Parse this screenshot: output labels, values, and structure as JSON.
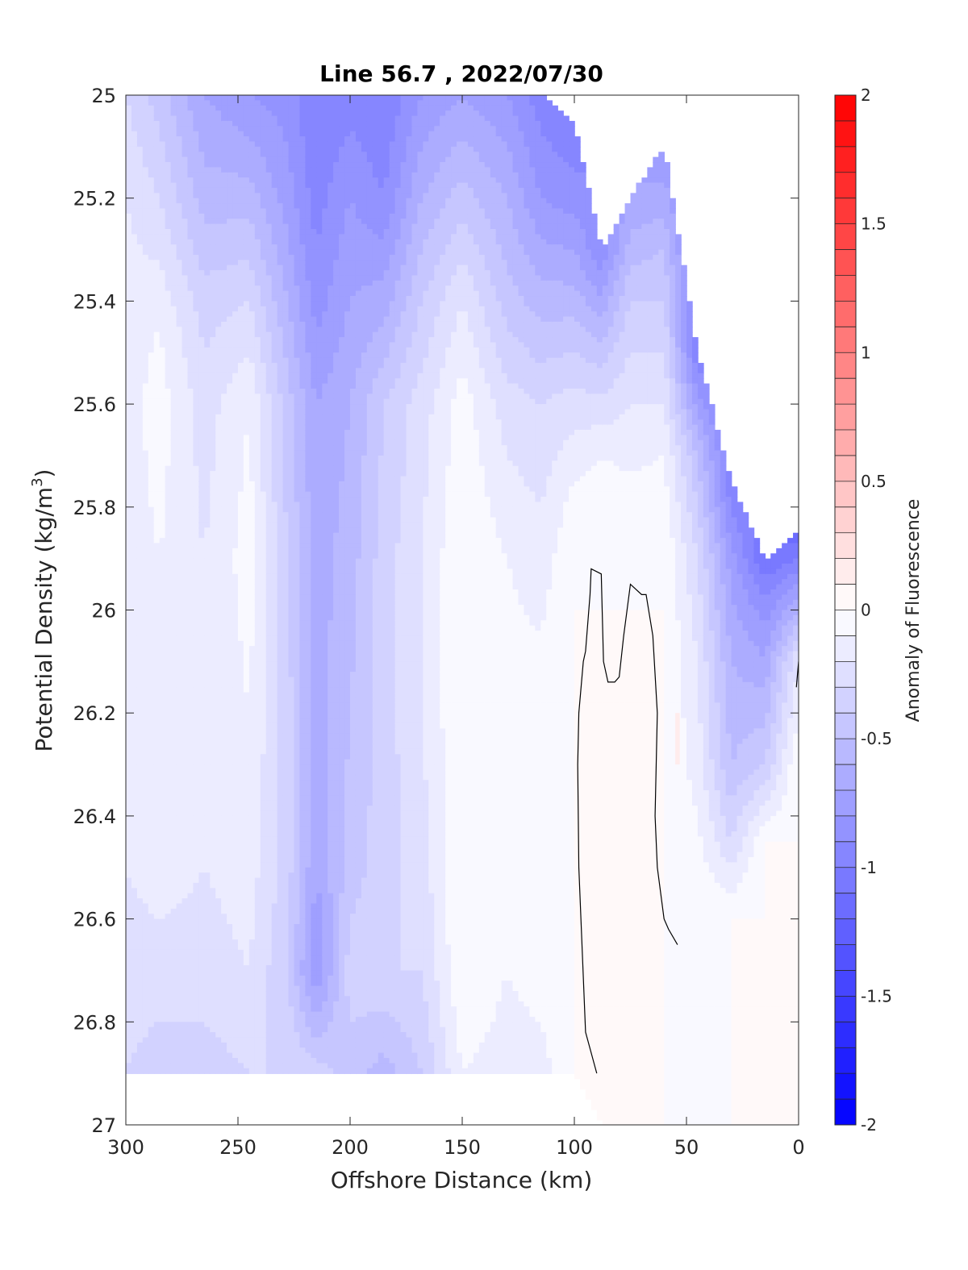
{
  "chart_data": {
    "type": "contour",
    "title": "Line 56.7 , 2022/07/30",
    "xlabel": "Offshore Distance (km)",
    "ylabel": "Potential Density (kg/m",
    "ylabel_superscript": "3",
    "ylabel_suffix": ")",
    "xlim": [
      300,
      0
    ],
    "ylim": [
      25,
      27
    ],
    "x_reversed": true,
    "y_reversed": true,
    "xticks": [
      300,
      250,
      200,
      150,
      100,
      50,
      0
    ],
    "yticks": [
      25,
      25.2,
      25.4,
      25.6,
      25.8,
      26,
      26.2,
      26.4,
      26.6,
      26.8,
      27
    ],
    "xtick_labels": [
      "300",
      "250",
      "200",
      "150",
      "100",
      "50",
      "0"
    ],
    "ytick_labels": [
      "25",
      "25.2",
      "25.4",
      "25.6",
      "25.8",
      "26",
      "26.2",
      "26.4",
      "26.6",
      "26.8",
      "27"
    ],
    "colorbar": {
      "label": "Anomaly of Fluorescence",
      "range": [
        -2,
        2
      ],
      "levels": 40,
      "ticks": [
        -2,
        -1.5,
        -1,
        -0.5,
        0,
        0.5,
        1,
        1.5,
        2
      ],
      "tick_labels": [
        "-2",
        "-1.5",
        "-1",
        "-0.5",
        "0",
        "0.5",
        "1",
        "1.5",
        "2"
      ],
      "low_color": "#0000ff",
      "mid_color": "#ffffff",
      "high_color": "#ff0000"
    },
    "columns": [
      {
        "x": 300,
        "top": 25.0,
        "bottom": 26.9,
        "profile": [
          [
            25.0,
            -0.3
          ],
          [
            25.2,
            -0.2
          ],
          [
            25.45,
            -0.15
          ],
          [
            25.9,
            -0.15
          ],
          [
            26.2,
            -0.15
          ],
          [
            26.5,
            -0.2
          ],
          [
            26.7,
            -0.25
          ],
          [
            26.9,
            -0.3
          ]
        ]
      },
      {
        "x": 285,
        "top": 25.0,
        "bottom": 26.9,
        "profile": [
          [
            25.0,
            -0.45
          ],
          [
            25.2,
            -0.3
          ],
          [
            25.45,
            -0.1
          ],
          [
            25.6,
            -0.05
          ],
          [
            25.9,
            -0.1
          ],
          [
            26.2,
            -0.15
          ],
          [
            26.5,
            -0.15
          ],
          [
            26.7,
            -0.25
          ],
          [
            26.9,
            -0.35
          ]
        ]
      },
      {
        "x": 265,
        "top": 25.0,
        "bottom": 26.9,
        "profile": [
          [
            25.0,
            -0.7
          ],
          [
            25.2,
            -0.55
          ],
          [
            25.4,
            -0.35
          ],
          [
            25.6,
            -0.25
          ],
          [
            25.9,
            -0.2
          ],
          [
            26.2,
            -0.2
          ],
          [
            26.5,
            -0.2
          ],
          [
            26.7,
            -0.25
          ],
          [
            26.9,
            -0.35
          ]
        ]
      },
      {
        "x": 245,
        "top": 25.0,
        "bottom": 26.9,
        "profile": [
          [
            25.0,
            -0.8
          ],
          [
            25.2,
            -0.55
          ],
          [
            25.4,
            -0.3
          ],
          [
            25.6,
            -0.1
          ],
          [
            25.9,
            -0.05
          ],
          [
            26.2,
            -0.1
          ],
          [
            26.5,
            -0.15
          ],
          [
            26.7,
            -0.2
          ],
          [
            26.9,
            -0.3
          ]
        ]
      },
      {
        "x": 228,
        "top": 25.0,
        "bottom": 26.9,
        "profile": [
          [
            25.0,
            -0.85
          ],
          [
            25.2,
            -0.75
          ],
          [
            25.4,
            -0.6
          ],
          [
            25.6,
            -0.45
          ],
          [
            25.9,
            -0.4
          ],
          [
            26.2,
            -0.35
          ],
          [
            26.5,
            -0.35
          ],
          [
            26.7,
            -0.4
          ],
          [
            26.9,
            -0.3
          ]
        ]
      },
      {
        "x": 215,
        "top": 25.0,
        "bottom": 26.9,
        "profile": [
          [
            25.0,
            -1.0
          ],
          [
            25.2,
            -0.95
          ],
          [
            25.4,
            -0.85
          ],
          [
            25.6,
            -0.7
          ],
          [
            25.9,
            -0.65
          ],
          [
            26.2,
            -0.65
          ],
          [
            26.5,
            -0.7
          ],
          [
            26.7,
            -0.8
          ],
          [
            26.9,
            -0.35
          ]
        ]
      },
      {
        "x": 200,
        "top": 25.0,
        "bottom": 26.9,
        "profile": [
          [
            25.0,
            -0.95
          ],
          [
            25.2,
            -0.8
          ],
          [
            25.4,
            -0.7
          ],
          [
            25.6,
            -0.6
          ],
          [
            25.9,
            -0.55
          ],
          [
            26.2,
            -0.5
          ],
          [
            26.5,
            -0.45
          ],
          [
            26.7,
            -0.35
          ],
          [
            26.9,
            -0.45
          ]
        ]
      },
      {
        "x": 185,
        "top": 25.0,
        "bottom": 26.9,
        "profile": [
          [
            25.0,
            -1.0
          ],
          [
            25.2,
            -0.9
          ],
          [
            25.4,
            -0.65
          ],
          [
            25.6,
            -0.4
          ],
          [
            25.9,
            -0.35
          ],
          [
            26.2,
            -0.35
          ],
          [
            26.5,
            -0.35
          ],
          [
            26.7,
            -0.3
          ],
          [
            26.9,
            -0.55
          ]
        ]
      },
      {
        "x": 168,
        "top": 25.0,
        "bottom": 26.9,
        "profile": [
          [
            25.0,
            -0.8
          ],
          [
            25.2,
            -0.6
          ],
          [
            25.4,
            -0.4
          ],
          [
            25.6,
            -0.25
          ],
          [
            25.9,
            -0.2
          ],
          [
            26.2,
            -0.2
          ],
          [
            26.5,
            -0.25
          ],
          [
            26.7,
            -0.3
          ],
          [
            26.9,
            -0.4
          ]
        ]
      },
      {
        "x": 150,
        "top": 25.0,
        "bottom": 26.9,
        "profile": [
          [
            25.0,
            -0.7
          ],
          [
            25.2,
            -0.45
          ],
          [
            25.4,
            -0.2
          ],
          [
            25.6,
            -0.05
          ],
          [
            25.9,
            0.0
          ],
          [
            26.2,
            0.0
          ],
          [
            26.5,
            0.0
          ],
          [
            26.7,
            0.0
          ],
          [
            26.9,
            -0.1
          ]
        ]
      },
      {
        "x": 130,
        "top": 25.0,
        "bottom": 26.9,
        "profile": [
          [
            25.0,
            -0.8
          ],
          [
            25.2,
            -0.6
          ],
          [
            25.4,
            -0.45
          ],
          [
            25.6,
            -0.25
          ],
          [
            25.9,
            -0.1
          ],
          [
            26.2,
            -0.05
          ],
          [
            26.5,
            -0.05
          ],
          [
            26.7,
            -0.1
          ],
          [
            26.9,
            -0.15
          ]
        ]
      },
      {
        "x": 115,
        "top": 25.0,
        "bottom": 26.9,
        "profile": [
          [
            25.0,
            -0.95
          ],
          [
            25.2,
            -0.8
          ],
          [
            25.4,
            -0.55
          ],
          [
            25.6,
            -0.3
          ],
          [
            25.9,
            -0.15
          ],
          [
            26.2,
            -0.05
          ],
          [
            26.5,
            -0.05
          ],
          [
            26.7,
            -0.05
          ],
          [
            26.9,
            -0.15
          ]
        ]
      },
      {
        "x": 100,
        "top": 25.05,
        "bottom": 26.9,
        "profile": [
          [
            25.05,
            -1.0
          ],
          [
            25.2,
            -0.85
          ],
          [
            25.4,
            -0.55
          ],
          [
            25.6,
            -0.25
          ],
          [
            25.8,
            -0.05
          ],
          [
            26.0,
            0.0
          ],
          [
            26.5,
            0.0
          ],
          [
            26.9,
            0.0
          ]
        ]
      },
      {
        "x": 88,
        "top": 25.3,
        "bottom": 27.0,
        "profile": [
          [
            25.3,
            -0.9
          ],
          [
            25.5,
            -0.45
          ],
          [
            25.7,
            -0.1
          ],
          [
            25.9,
            0.0
          ],
          [
            27.0,
            0.0
          ]
        ]
      },
      {
        "x": 75,
        "top": 25.2,
        "bottom": 27.0,
        "profile": [
          [
            25.2,
            -0.7
          ],
          [
            25.4,
            -0.4
          ],
          [
            25.6,
            -0.2
          ],
          [
            25.8,
            -0.05
          ],
          [
            26.0,
            0.0
          ],
          [
            27.0,
            0.0
          ]
        ]
      },
      {
        "x": 60,
        "top": 25.1,
        "bottom": 27.0,
        "profile": [
          [
            25.1,
            -0.8
          ],
          [
            25.3,
            -0.5
          ],
          [
            25.5,
            -0.3
          ],
          [
            25.7,
            -0.1
          ],
          [
            25.9,
            0.0
          ],
          [
            27.0,
            0.0
          ]
        ]
      },
      {
        "x": 45,
        "top": 25.5,
        "bottom": 27.0,
        "profile": [
          [
            25.5,
            -1.0
          ],
          [
            25.7,
            -0.5
          ],
          [
            25.9,
            -0.3
          ],
          [
            26.1,
            -0.2
          ],
          [
            26.3,
            -0.15
          ],
          [
            26.5,
            -0.05
          ],
          [
            27.0,
            0.0
          ]
        ]
      },
      {
        "x": 30,
        "top": 25.75,
        "bottom": 27.0,
        "profile": [
          [
            25.75,
            -1.0
          ],
          [
            25.9,
            -0.75
          ],
          [
            26.1,
            -0.6
          ],
          [
            26.3,
            -0.5
          ],
          [
            26.45,
            -0.3
          ],
          [
            26.6,
            0.0
          ],
          [
            27.0,
            0.0
          ]
        ]
      },
      {
        "x": 15,
        "top": 25.9,
        "bottom": 27.0,
        "profile": [
          [
            25.9,
            -1.1
          ],
          [
            26.0,
            -0.85
          ],
          [
            26.15,
            -0.6
          ],
          [
            26.3,
            -0.4
          ],
          [
            26.45,
            0.0
          ],
          [
            27.0,
            0.0
          ]
        ]
      },
      {
        "x": 0,
        "top": 25.85,
        "bottom": 27.0,
        "profile": [
          [
            25.85,
            -1.2
          ],
          [
            26.0,
            -0.6
          ],
          [
            26.1,
            -0.2
          ],
          [
            26.3,
            0.0
          ],
          [
            27.0,
            0.0
          ]
        ]
      }
    ],
    "zero_contours": [
      {
        "points": [
          [
            90,
            26.9
          ],
          [
            95,
            26.82
          ],
          [
            98,
            26.5
          ],
          [
            98.5,
            26.3
          ],
          [
            98,
            26.2
          ],
          [
            96,
            26.1
          ],
          [
            95,
            26.08
          ],
          [
            93,
            25.97
          ],
          [
            92.5,
            25.92
          ],
          [
            88,
            25.93
          ],
          [
            87,
            26.1
          ],
          [
            85,
            26.14
          ],
          [
            82,
            26.14
          ],
          [
            80,
            26.13
          ],
          [
            78,
            26.05
          ],
          [
            75,
            25.95
          ],
          [
            70,
            25.97
          ],
          [
            68,
            25.97
          ],
          [
            65,
            26.05
          ],
          [
            63,
            26.2
          ],
          [
            64,
            26.4
          ],
          [
            63,
            26.5
          ],
          [
            60,
            26.6
          ],
          [
            58,
            26.62
          ],
          [
            54,
            26.65
          ]
        ]
      },
      {
        "points": [
          [
            0,
            26.1
          ],
          [
            1,
            26.15
          ]
        ]
      }
    ],
    "positive_patch": {
      "x": [
        55,
        53
      ],
      "y": [
        26.2,
        26.3
      ],
      "value": 0.1
    }
  }
}
